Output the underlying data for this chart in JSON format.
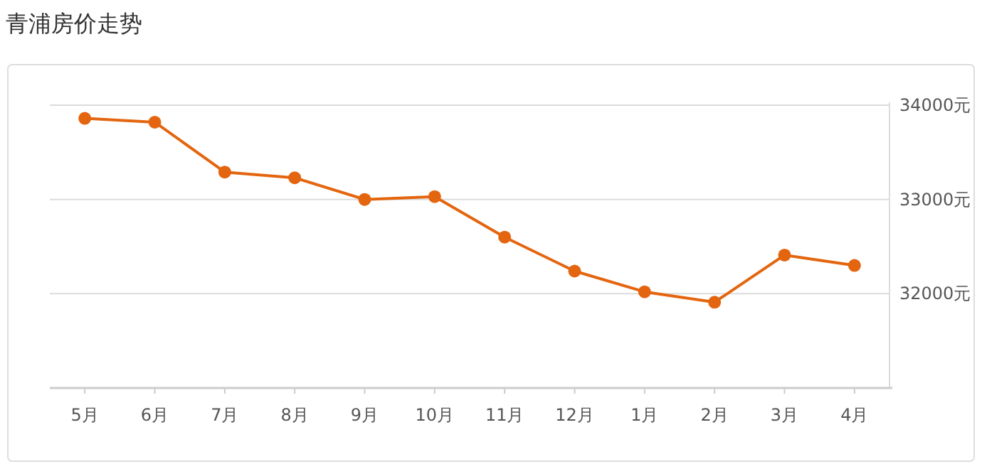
{
  "chart_data": {
    "type": "line",
    "title": "青浦房价走势",
    "categories": [
      "5月",
      "6月",
      "7月",
      "8月",
      "9月",
      "10月",
      "11月",
      "12月",
      "1月",
      "2月",
      "3月",
      "4月"
    ],
    "series": [
      {
        "color": "#e4650f",
        "values": [
          33860,
          33820,
          33290,
          33230,
          33000,
          33030,
          32600,
          32240,
          32020,
          31910,
          32410,
          32300
        ]
      }
    ],
    "ylim": [
      31000,
      34000
    ],
    "yticks": [
      {
        "value": 34000,
        "label": "34000元"
      },
      {
        "value": 33000,
        "label": "33000元"
      },
      {
        "value": 32000,
        "label": "32000元"
      }
    ],
    "grid": "y",
    "marker": "circle",
    "line_style": "solid"
  }
}
